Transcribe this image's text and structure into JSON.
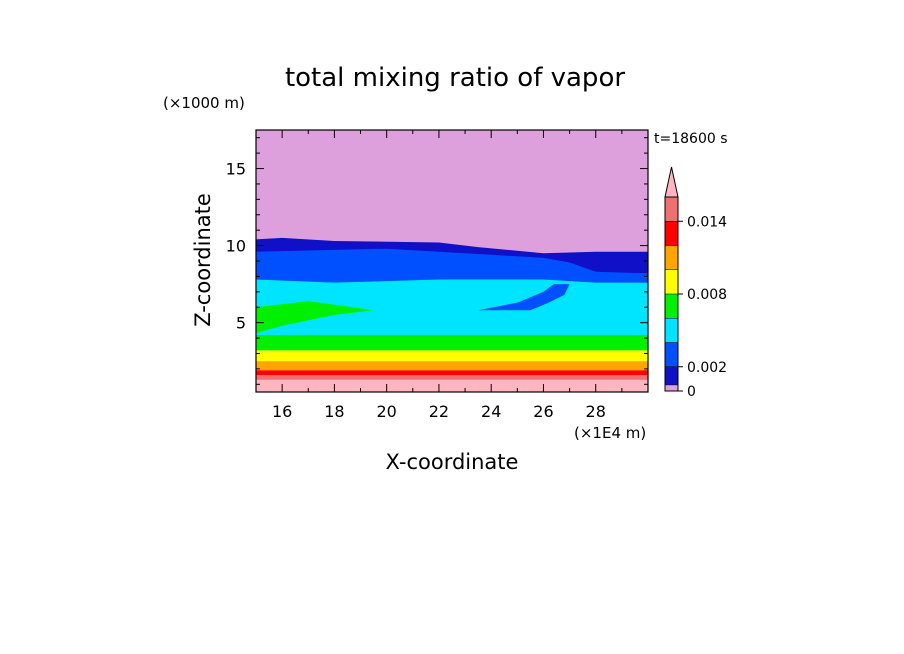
{
  "chart_data": {
    "type": "heatmap",
    "title": "total mixing ratio of vapor",
    "xlabel": "X-coordinate",
    "ylabel": "Z-coordinate",
    "x_unit": "(×1E4 m)",
    "y_unit": "(×1000 m)",
    "time_label": "t=18600 s",
    "xlim": [
      15,
      30
    ],
    "ylim": [
      0.5,
      17.5
    ],
    "x_ticks": [
      "16",
      "18",
      "20",
      "22",
      "24",
      "26",
      "28"
    ],
    "y_ticks": [
      "5",
      "10",
      "15"
    ],
    "colorbar": {
      "levels": [
        0,
        0.0005,
        0.002,
        0.004,
        0.006,
        0.008,
        0.01,
        0.012,
        0.014,
        0.016
      ],
      "tick_labels": [
        "0",
        "0.002",
        "0.008",
        "0.014"
      ],
      "colors": [
        "#dda0dd",
        "#1010c8",
        "#0050ff",
        "#00e5ff",
        "#00f000",
        "#ffff00",
        "#ffa500",
        "#ff0000",
        "#f07070",
        "#ffb6c1"
      ],
      "extend": "max"
    },
    "bands": [
      {
        "name": "band-1",
        "color": "#ffb6c1",
        "level": 0.016,
        "top": [
          [
            15,
            1.3
          ],
          [
            30,
            1.3
          ]
        ]
      },
      {
        "name": "band-2",
        "color": "#f07070",
        "level": 0.014,
        "top": [
          [
            15,
            1.6
          ],
          [
            30,
            1.6
          ]
        ]
      },
      {
        "name": "band-3",
        "color": "#ff0000",
        "level": 0.012,
        "top": [
          [
            15,
            1.9
          ],
          [
            30,
            1.9
          ]
        ]
      },
      {
        "name": "band-4",
        "color": "#ffa500",
        "level": 0.01,
        "top": [
          [
            15,
            2.5
          ],
          [
            30,
            2.5
          ]
        ]
      },
      {
        "name": "band-5",
        "color": "#ffff00",
        "level": 0.008,
        "top": [
          [
            15,
            3.2
          ],
          [
            30,
            3.2
          ]
        ]
      },
      {
        "name": "band-6",
        "color": "#00f000",
        "level": 0.006,
        "top": [
          [
            15,
            4.2
          ],
          [
            30,
            4.2
          ]
        ]
      },
      {
        "name": "band-7",
        "color": "#00e5ff",
        "level": 0.004,
        "top": [
          [
            15,
            7.8
          ],
          [
            18,
            7.6
          ],
          [
            22,
            7.8
          ],
          [
            26,
            7.8
          ],
          [
            28,
            7.6
          ],
          [
            30,
            7.6
          ]
        ]
      },
      {
        "name": "band-8",
        "color": "#0050ff",
        "level": 0.002,
        "top": [
          [
            15,
            9.6
          ],
          [
            20,
            9.8
          ],
          [
            24,
            9.4
          ],
          [
            26,
            9.2
          ],
          [
            27,
            8.9
          ],
          [
            28,
            8.3
          ],
          [
            30,
            8.2
          ]
        ]
      },
      {
        "name": "band-9",
        "color": "#1010c8",
        "level": 0.0005,
        "top": [
          [
            15,
            10.4
          ],
          [
            16,
            10.5
          ],
          [
            18,
            10.3
          ],
          [
            22,
            10.2
          ],
          [
            23.5,
            9.9
          ],
          [
            26,
            9.5
          ],
          [
            28,
            9.6
          ],
          [
            30,
            9.6
          ]
        ]
      }
    ],
    "features": [
      {
        "name": "green-tongue",
        "color": "#00f000",
        "points": [
          [
            15,
            4.3
          ],
          [
            15,
            6.0
          ],
          [
            17,
            6.4
          ],
          [
            19.5,
            5.8
          ],
          [
            18,
            5.5
          ],
          [
            16,
            4.8
          ]
        ]
      },
      {
        "name": "blue-intrusion",
        "color": "#0050ff",
        "points": [
          [
            23.5,
            5.8
          ],
          [
            25,
            6.3
          ],
          [
            26,
            7.0
          ],
          [
            26.4,
            7.5
          ],
          [
            27.0,
            7.5
          ],
          [
            26.8,
            6.8
          ],
          [
            26.2,
            6.3
          ],
          [
            25.5,
            5.8
          ]
        ]
      }
    ]
  }
}
